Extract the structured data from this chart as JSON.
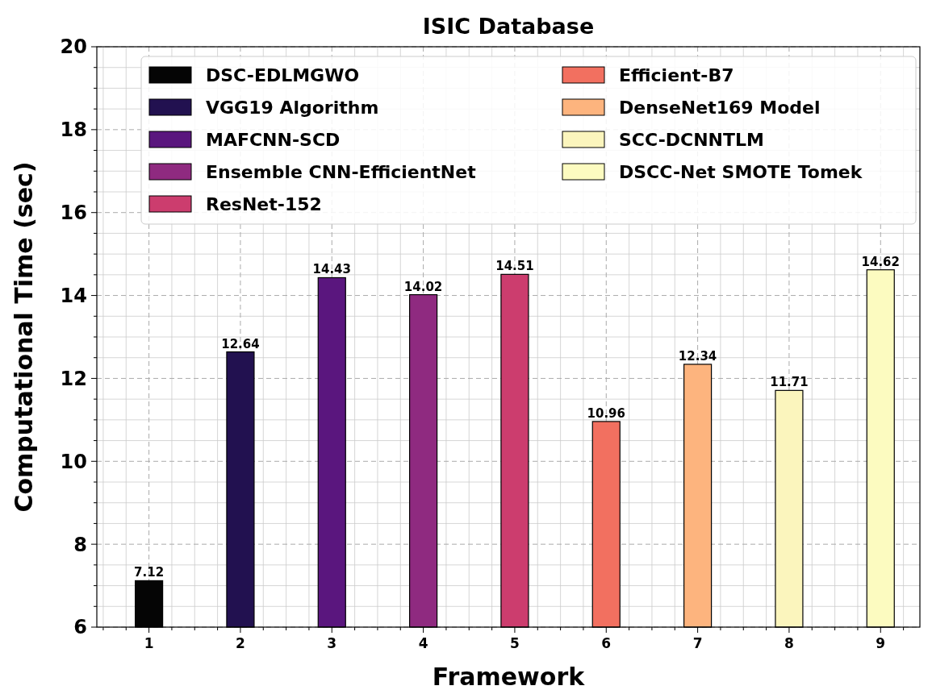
{
  "chart_data": {
    "type": "bar",
    "title": "ISIC Database",
    "xlabel": "Framework",
    "ylabel": "Computational Time (sec)",
    "categories": [
      "1",
      "2",
      "3",
      "4",
      "5",
      "6",
      "7",
      "8",
      "9"
    ],
    "series": [
      {
        "name": "DSC-EDLMGWO",
        "color": "#050505",
        "values": [
          7.12,
          null,
          null,
          null,
          null,
          null,
          null,
          null,
          null
        ]
      },
      {
        "name": "VGG19 Algorithm",
        "color": "#221150",
        "values": [
          null,
          12.64,
          null,
          null,
          null,
          null,
          null,
          null,
          null
        ]
      },
      {
        "name": "MAFCNN-SCD",
        "color": "#5a167e",
        "values": [
          null,
          null,
          14.43,
          null,
          null,
          null,
          null,
          null,
          null
        ]
      },
      {
        "name": "Ensemble CNN-EfficientNet",
        "color": "#8f2a80",
        "values": [
          null,
          null,
          null,
          14.02,
          null,
          null,
          null,
          null,
          null
        ]
      },
      {
        "name": "ResNet-152",
        "color": "#cc3d6e",
        "values": [
          null,
          null,
          null,
          null,
          14.51,
          null,
          null,
          null,
          null
        ]
      },
      {
        "name": "Efficient-B7",
        "color": "#f27060",
        "values": [
          null,
          null,
          null,
          null,
          null,
          10.96,
          null,
          null,
          null
        ]
      },
      {
        "name": "DenseNet169 Model",
        "color": "#fdb47e",
        "values": [
          null,
          null,
          null,
          null,
          null,
          null,
          12.34,
          null,
          null
        ]
      },
      {
        "name": "SCC-DCNNTLM",
        "color": "#fbf5bd",
        "values": [
          null,
          null,
          null,
          null,
          null,
          null,
          null,
          11.71,
          null
        ]
      },
      {
        "name": "DSCC-Net SMOTE Tomek",
        "color": "#fcfbc0",
        "values": [
          null,
          null,
          null,
          null,
          null,
          null,
          null,
          null,
          14.62
        ]
      }
    ],
    "ylim": [
      6,
      20
    ],
    "yticks": [
      6,
      8,
      10,
      12,
      14,
      16,
      18,
      20
    ],
    "grid": true,
    "legend": "top",
    "data_labels": true
  }
}
